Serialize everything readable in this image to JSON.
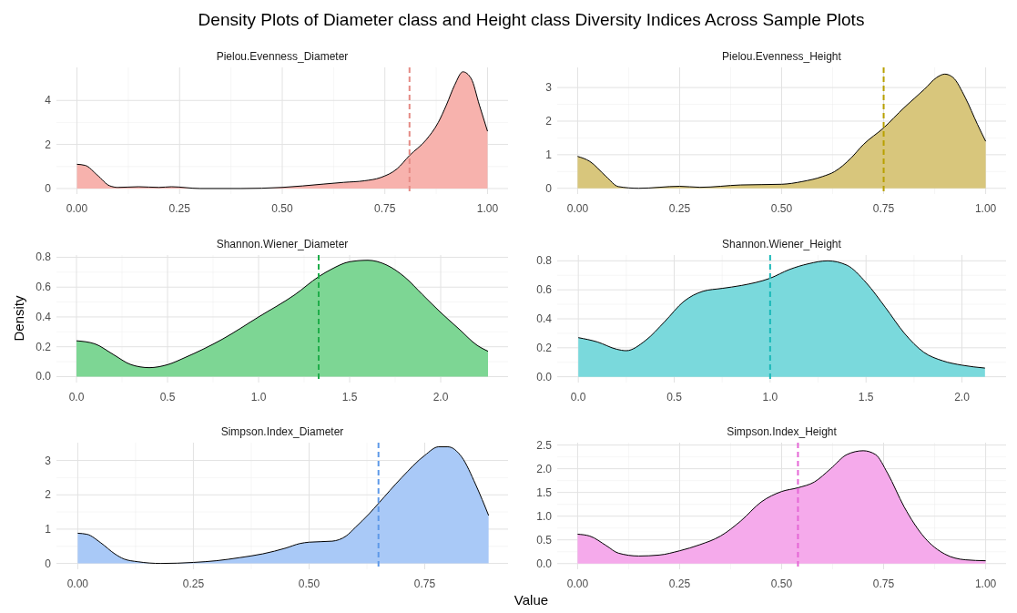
{
  "chart_data": [
    {
      "type": "area",
      "title": "Pielou.Evenness_Diameter",
      "annotations": [
        "Density Plots of Diameter class and Height class Diversity Indices Across Sample Plots"
      ],
      "xlim": [
        -0.05,
        1.05
      ],
      "ylim": [
        -0.25,
        5.5
      ],
      "xticks": [
        {
          "value": 0,
          "label": "0.00"
        },
        0.25,
        {
          "value": 0.5,
          "label": "0.50"
        },
        0.75,
        {
          "value": 1,
          "label": "1.00"
        }
      ],
      "yticks": [
        0,
        2,
        4
      ],
      "grid": true,
      "series": [
        {
          "color": "#f7b2ad",
          "x": [
            0,
            0.02,
            0.05,
            0.08,
            0.1,
            0.15,
            0.2,
            0.23,
            0.3,
            0.4,
            0.5,
            0.6,
            0.65,
            0.7,
            0.74,
            0.78,
            0.81,
            0.85,
            0.88,
            0.9,
            0.92,
            0.94,
            0.96,
            0.98,
            1.0
          ],
          "values": [
            1.1,
            1.05,
            0.6,
            0.12,
            0.05,
            0.08,
            0.05,
            0.08,
            0,
            0,
            0.05,
            0.2,
            0.28,
            0.35,
            0.5,
            0.9,
            1.5,
            2.2,
            3.0,
            3.8,
            4.7,
            5.3,
            5.0,
            3.8,
            2.6
          ]
        }
      ],
      "ref_lines": [
        {
          "axis": "x",
          "value": 0.81,
          "color": "#e58a84",
          "line_style": "dashed"
        }
      ]
    },
    {
      "type": "area",
      "title": "Pielou.Evenness_Height",
      "xlim": [
        -0.05,
        1.05
      ],
      "ylim": [
        -0.17,
        3.6
      ],
      "xticks": [
        {
          "value": 0,
          "label": "0.00"
        },
        0.25,
        {
          "value": 0.5,
          "label": "0.50"
        },
        0.75,
        {
          "value": 1,
          "label": "1.00"
        }
      ],
      "yticks": [
        0,
        1,
        2,
        3
      ],
      "grid": true,
      "series": [
        {
          "color": "#d8c67c",
          "x": [
            0,
            0.03,
            0.07,
            0.1,
            0.15,
            0.25,
            0.3,
            0.4,
            0.5,
            0.55,
            0.6,
            0.63,
            0.67,
            0.7,
            0.75,
            0.8,
            0.85,
            0.88,
            0.9,
            0.92,
            0.95,
            0.98,
            1.0
          ],
          "values": [
            0.95,
            0.8,
            0.35,
            0.05,
            0,
            0.06,
            0.03,
            0.1,
            0.12,
            0.2,
            0.35,
            0.5,
            0.9,
            1.3,
            1.8,
            2.4,
            2.95,
            3.3,
            3.4,
            3.3,
            2.7,
            1.9,
            1.4
          ]
        }
      ],
      "ref_lines": [
        {
          "axis": "x",
          "value": 0.75,
          "color": "#b8a000",
          "line_style": "dashed"
        }
      ]
    },
    {
      "type": "area",
      "title": "Shannon.Wiener_Diameter",
      "ylabel": "Density",
      "xlim": [
        -0.11,
        2.37
      ],
      "ylim": [
        -0.04,
        0.815
      ],
      "xticks": [
        {
          "value": 0,
          "label": "0.0"
        },
        0.5,
        {
          "value": 1,
          "label": "1.0"
        },
        1.5,
        {
          "value": 2,
          "label": "2.0"
        }
      ],
      "yticks": [
        {
          "value": 0,
          "label": "0.0"
        },
        0.2,
        0.4,
        0.6,
        0.8
      ],
      "grid": true,
      "series": [
        {
          "color": "#7dd694",
          "x": [
            0,
            0.1,
            0.2,
            0.3,
            0.4,
            0.5,
            0.6,
            0.8,
            1.0,
            1.2,
            1.33,
            1.4,
            1.5,
            1.6,
            1.7,
            1.8,
            1.9,
            2.0,
            2.1,
            2.2,
            2.26
          ],
          "values": [
            0.24,
            0.22,
            0.15,
            0.08,
            0.06,
            0.08,
            0.13,
            0.25,
            0.4,
            0.55,
            0.67,
            0.72,
            0.77,
            0.78,
            0.75,
            0.67,
            0.55,
            0.43,
            0.32,
            0.21,
            0.17
          ]
        }
      ],
      "ref_lines": [
        {
          "axis": "x",
          "value": 1.33,
          "color": "#1fad4a",
          "line_style": "dashed"
        }
      ]
    },
    {
      "type": "area",
      "title": "Shannon.Wiener_Height",
      "xlim": [
        -0.11,
        2.23
      ],
      "ylim": [
        -0.04,
        0.84
      ],
      "xticks": [
        {
          "value": 0,
          "label": "0.0"
        },
        0.5,
        {
          "value": 1,
          "label": "1.0"
        },
        1.5,
        {
          "value": 2,
          "label": "2.0"
        }
      ],
      "yticks": [
        {
          "value": 0,
          "label": "0.0"
        },
        0.2,
        0.4,
        0.6,
        0.8
      ],
      "grid": true,
      "series": [
        {
          "color": "#7ad9dc",
          "x": [
            0,
            0.1,
            0.2,
            0.25,
            0.35,
            0.45,
            0.55,
            0.65,
            0.75,
            0.85,
            1.0,
            1.1,
            1.2,
            1.3,
            1.4,
            1.5,
            1.6,
            1.7,
            1.8,
            1.9,
            2.0,
            2.12
          ],
          "values": [
            0.27,
            0.24,
            0.19,
            0.18,
            0.25,
            0.38,
            0.52,
            0.59,
            0.61,
            0.63,
            0.68,
            0.74,
            0.78,
            0.8,
            0.77,
            0.65,
            0.48,
            0.3,
            0.17,
            0.11,
            0.08,
            0.06
          ]
        }
      ],
      "ref_lines": [
        {
          "axis": "x",
          "value": 1.0,
          "color": "#1ab8b8",
          "line_style": "dashed"
        }
      ]
    },
    {
      "type": "area",
      "title": "Simpson.Index_Diameter",
      "xlabel": "Value",
      "xlim": [
        -0.046,
        0.93
      ],
      "ylim": [
        -0.17,
        3.52
      ],
      "xticks": [
        {
          "value": 0,
          "label": "0.00"
        },
        0.25,
        {
          "value": 0.5,
          "label": "0.50"
        },
        0.75
      ],
      "yticks": [
        0,
        1,
        2,
        3
      ],
      "grid": true,
      "series": [
        {
          "color": "#a9c9f7",
          "x": [
            0,
            0.02,
            0.05,
            0.08,
            0.1,
            0.13,
            0.18,
            0.25,
            0.3,
            0.35,
            0.4,
            0.45,
            0.48,
            0.5,
            0.55,
            0.58,
            0.6,
            0.63,
            0.65,
            0.7,
            0.75,
            0.78,
            0.8,
            0.83,
            0.86,
            0.888
          ],
          "values": [
            0.88,
            0.85,
            0.6,
            0.28,
            0.13,
            0.05,
            0,
            0.03,
            0.08,
            0.17,
            0.28,
            0.45,
            0.58,
            0.62,
            0.65,
            0.8,
            1.05,
            1.45,
            1.75,
            2.5,
            3.15,
            3.4,
            3.4,
            3.1,
            2.3,
            1.4
          ]
        }
      ],
      "ref_lines": [
        {
          "axis": "x",
          "value": 0.65,
          "color": "#5e99e8",
          "line_style": "dashed"
        }
      ]
    },
    {
      "type": "area",
      "title": "Simpson.Index_Height",
      "xlim": [
        -0.05,
        1.05
      ],
      "ylim": [
        -0.12,
        2.55
      ],
      "xticks": [
        {
          "value": 0,
          "label": "0.00"
        },
        0.25,
        {
          "value": 0.5,
          "label": "0.50"
        },
        0.75,
        {
          "value": 1,
          "label": "1.00"
        }
      ],
      "yticks": [
        {
          "value": 0,
          "label": "0.0"
        },
        0.5,
        {
          "value": 1,
          "label": "1.0"
        },
        1.5,
        {
          "value": 2,
          "label": "2.0"
        },
        2.5
      ],
      "grid": true,
      "series": [
        {
          "color": "#f5aaeb",
          "x": [
            0,
            0.03,
            0.07,
            0.1,
            0.15,
            0.2,
            0.25,
            0.3,
            0.35,
            0.4,
            0.45,
            0.5,
            0.54,
            0.58,
            0.62,
            0.66,
            0.7,
            0.73,
            0.76,
            0.8,
            0.85,
            0.9,
            0.95,
            1.0
          ],
          "values": [
            0.62,
            0.58,
            0.38,
            0.22,
            0.16,
            0.18,
            0.27,
            0.4,
            0.58,
            0.9,
            1.3,
            1.52,
            1.6,
            1.72,
            2.0,
            2.3,
            2.38,
            2.3,
            1.9,
            1.2,
            0.55,
            0.2,
            0.08,
            0.06
          ]
        }
      ],
      "ref_lines": [
        {
          "axis": "x",
          "value": 0.54,
          "color": "#e567d6",
          "line_style": "dashed"
        }
      ]
    }
  ]
}
